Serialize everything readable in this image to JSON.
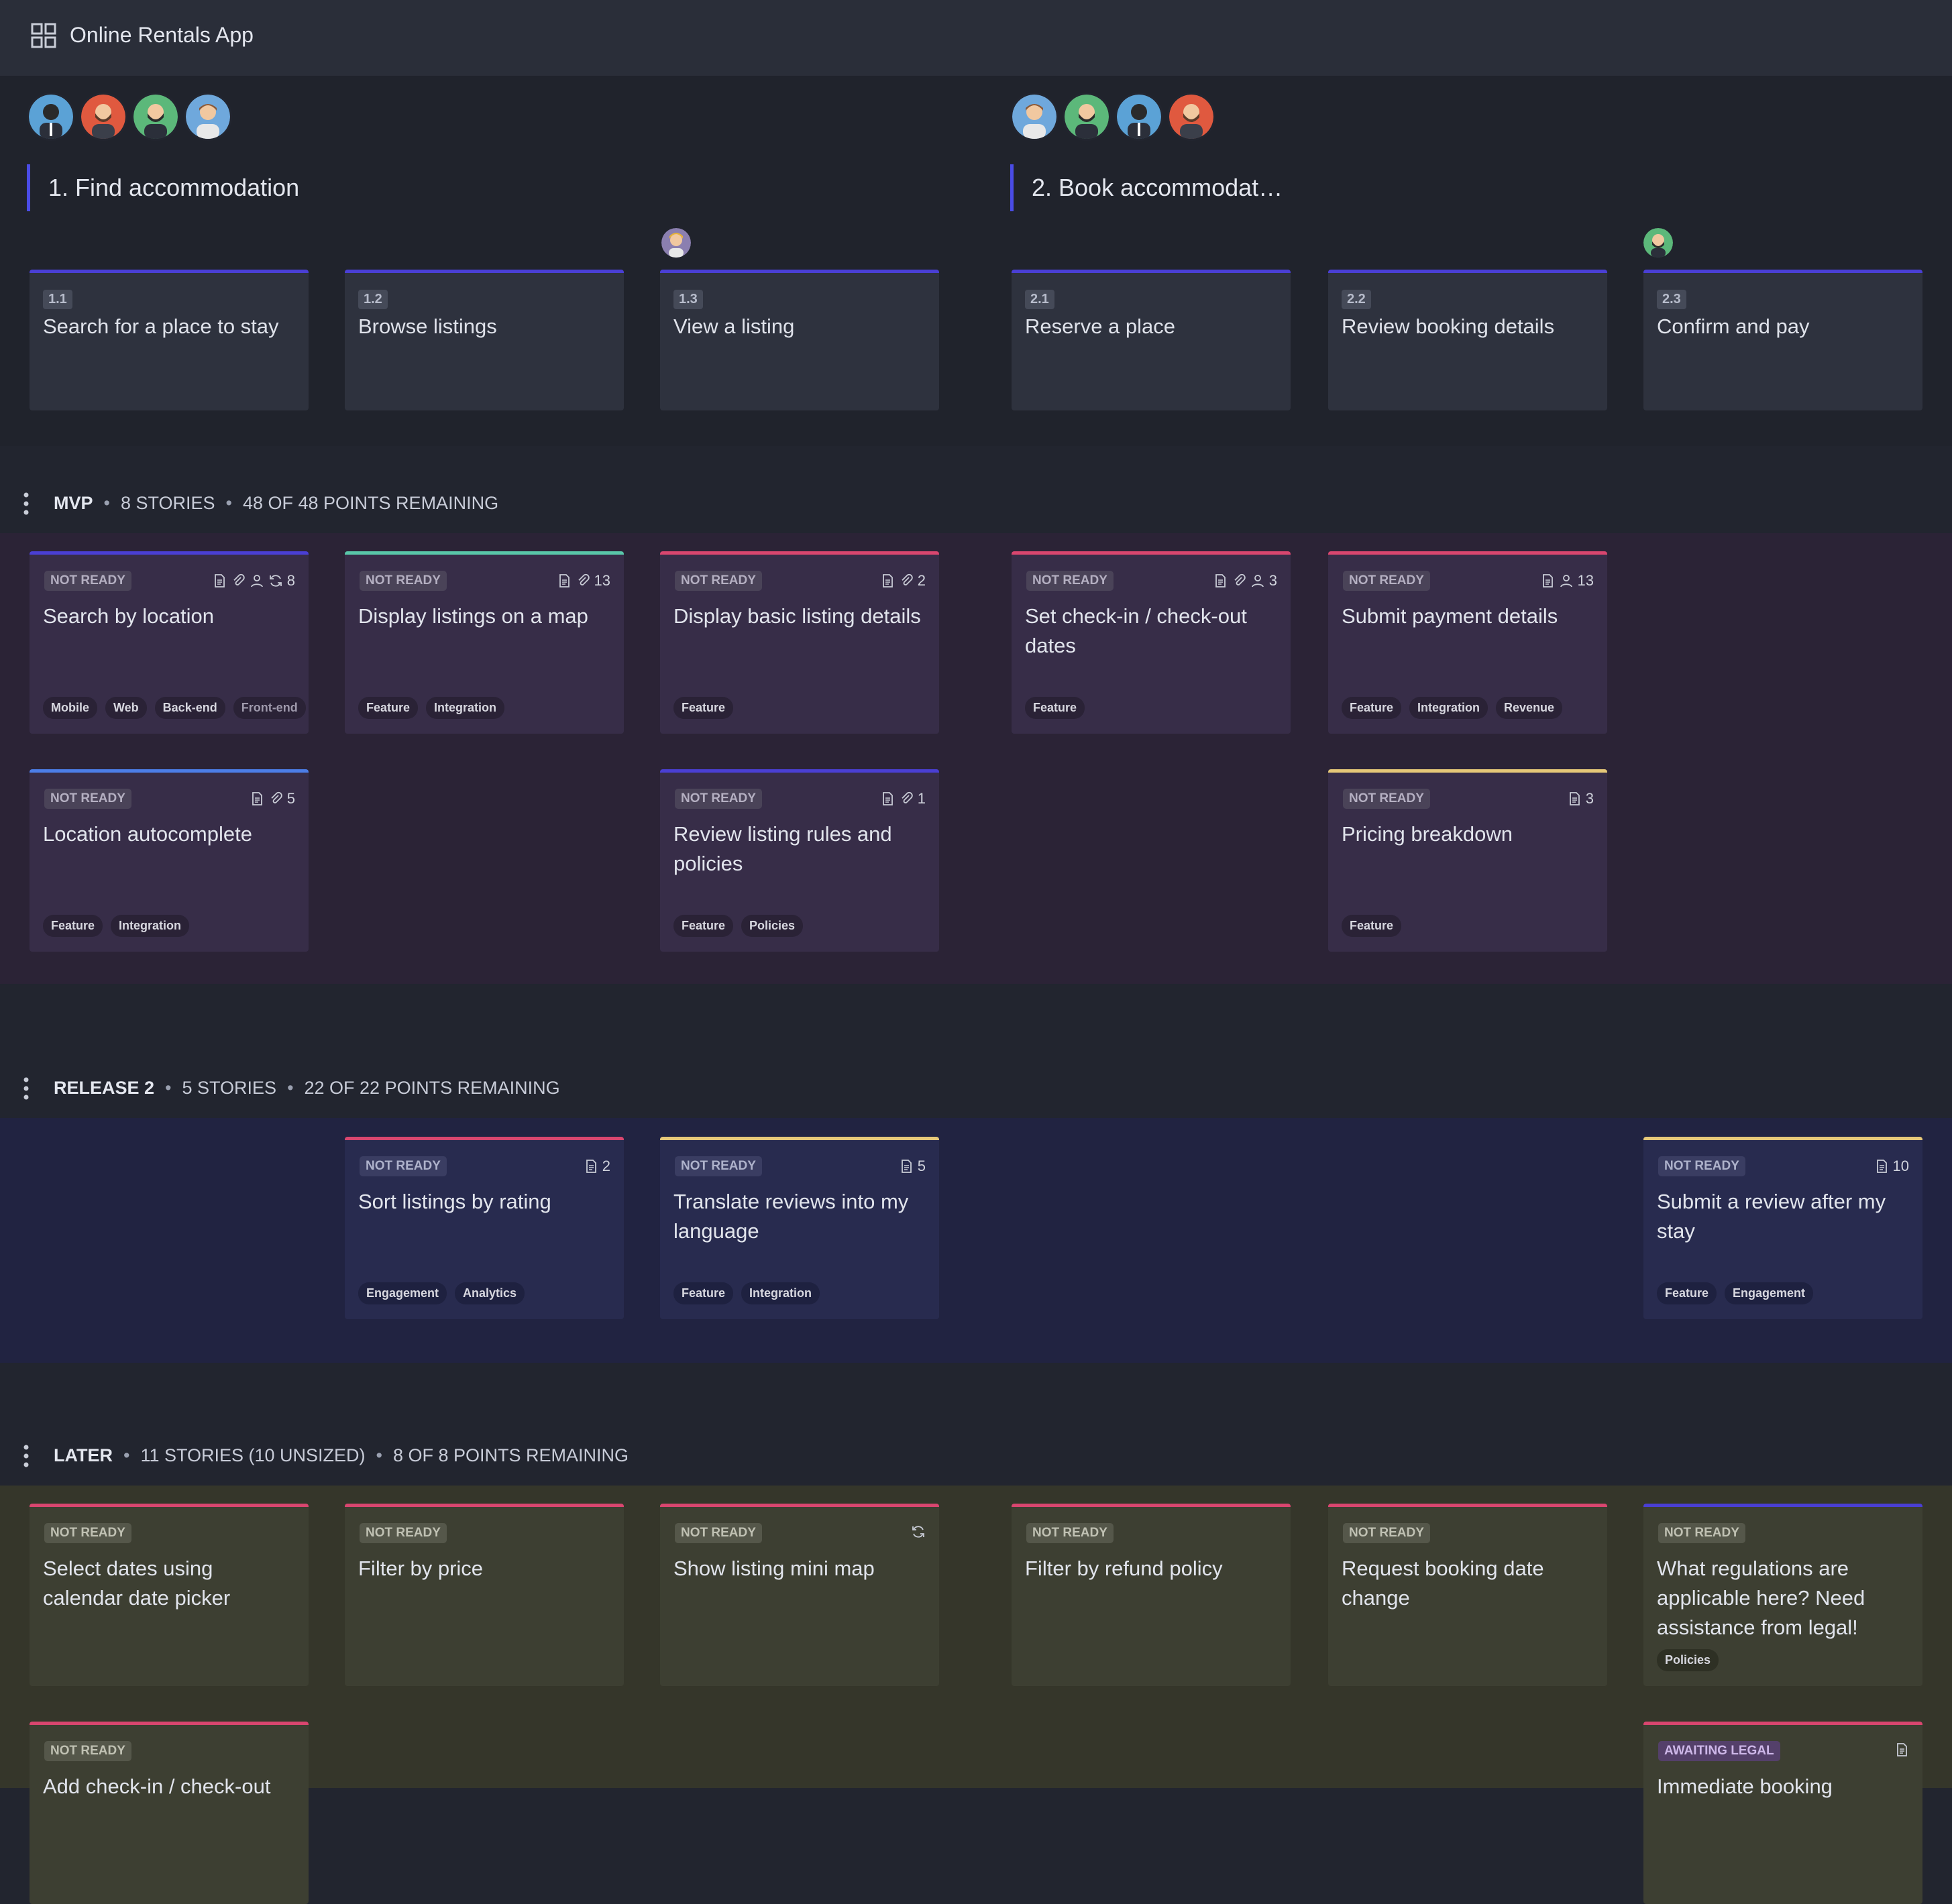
{
  "app": {
    "title": "Online Rentals App",
    "icon": "grid-icon"
  },
  "activities": [
    {
      "label": "1. Find accommodation"
    },
    {
      "label": "2. Book accommodat…"
    }
  ],
  "steps": [
    {
      "num": "1.1",
      "title": "Search for a place to stay"
    },
    {
      "num": "1.2",
      "title": "Browse listings"
    },
    {
      "num": "1.3",
      "title": "View a listing"
    },
    {
      "num": "2.1",
      "title": "Reserve a place"
    },
    {
      "num": "2.2",
      "title": "Review booking details"
    },
    {
      "num": "2.3",
      "title": "Confirm and pay"
    }
  ],
  "releases": {
    "mvp": {
      "name": "MVP",
      "stories": "8 STORIES",
      "points": "48 OF 48 POINTS REMAINING"
    },
    "r2": {
      "name": "RELEASE 2",
      "stories": "5 STORIES",
      "points": "22 OF 22 POINTS REMAINING"
    },
    "later": {
      "name": "LATER",
      "stories": "11 STORIES (10 UNSIZED)",
      "points": "8 OF 8 POINTS REMAINING"
    }
  },
  "cards": {
    "mvp": [
      {
        "status": "NOT READY",
        "points": "8",
        "title": "Search by location",
        "tags": [
          "Mobile",
          "Web",
          "Back-end",
          "Front-end"
        ],
        "color": "#4a3fd4"
      },
      {
        "status": "NOT READY",
        "points": "13",
        "title": "Display listings on a map",
        "tags": [
          "Feature",
          "Integration"
        ],
        "color": "#59c7a9"
      },
      {
        "status": "NOT READY",
        "points": "2",
        "title": "Display basic listing details",
        "tags": [
          "Feature"
        ],
        "color": "#d9466f"
      },
      {
        "status": "NOT READY",
        "points": "3",
        "title": "Set check-in / check-out dates",
        "tags": [
          "Feature"
        ],
        "color": "#d9466f"
      },
      {
        "status": "NOT READY",
        "points": "13",
        "title": "Submit payment details",
        "tags": [
          "Feature",
          "Integration",
          "Revenue"
        ],
        "color": "#d9466f"
      },
      {
        "status": "NOT READY",
        "points": "5",
        "title": "Location autocomplete",
        "tags": [
          "Feature",
          "Integration"
        ],
        "color": "#4c7ee8"
      },
      {
        "status": "NOT READY",
        "points": "1",
        "title": "Review listing rules and policies",
        "tags": [
          "Feature",
          "Policies"
        ],
        "color": "#4a3fd4"
      },
      {
        "status": "NOT READY",
        "points": "3",
        "title": "Pricing breakdown",
        "tags": [
          "Feature"
        ],
        "color": "#e6c878"
      }
    ],
    "r2": [
      {
        "status": "NOT READY",
        "points": "2",
        "title": "Sort listings by rating",
        "tags": [
          "Engagement",
          "Analytics"
        ],
        "color": "#d9466f"
      },
      {
        "status": "NOT READY",
        "points": "5",
        "title": "Translate reviews into my language",
        "tags": [
          "Feature",
          "Integration"
        ],
        "color": "#e6c878"
      },
      {
        "status": "NOT READY",
        "points": "10",
        "title": "Submit a review after my stay",
        "tags": [
          "Feature",
          "Engagement"
        ],
        "color": "#e6c878"
      }
    ],
    "later": [
      {
        "status": "NOT READY",
        "title": "Select dates using calendar date picker",
        "color": "#d9466f"
      },
      {
        "status": "NOT READY",
        "title": "Filter by price",
        "color": "#d9466f"
      },
      {
        "status": "NOT READY",
        "title": "Show listing mini map",
        "color": "#d9466f"
      },
      {
        "status": "NOT READY",
        "title": "Filter by refund policy",
        "color": "#d9466f"
      },
      {
        "status": "NOT READY",
        "title": "Request booking date change",
        "color": "#d9466f"
      },
      {
        "status": "NOT READY",
        "title": "What regulations are applicable here? Need assistance from legal!",
        "tags": [
          "Policies"
        ],
        "color": "#4a3fd4"
      },
      {
        "status": "NOT READY",
        "title": "Add check-in / check-out",
        "color": "#d9466f"
      },
      {
        "status": "AWAITING LEGAL",
        "title": "Immediate booking",
        "color": "#d9466f"
      }
    ]
  }
}
